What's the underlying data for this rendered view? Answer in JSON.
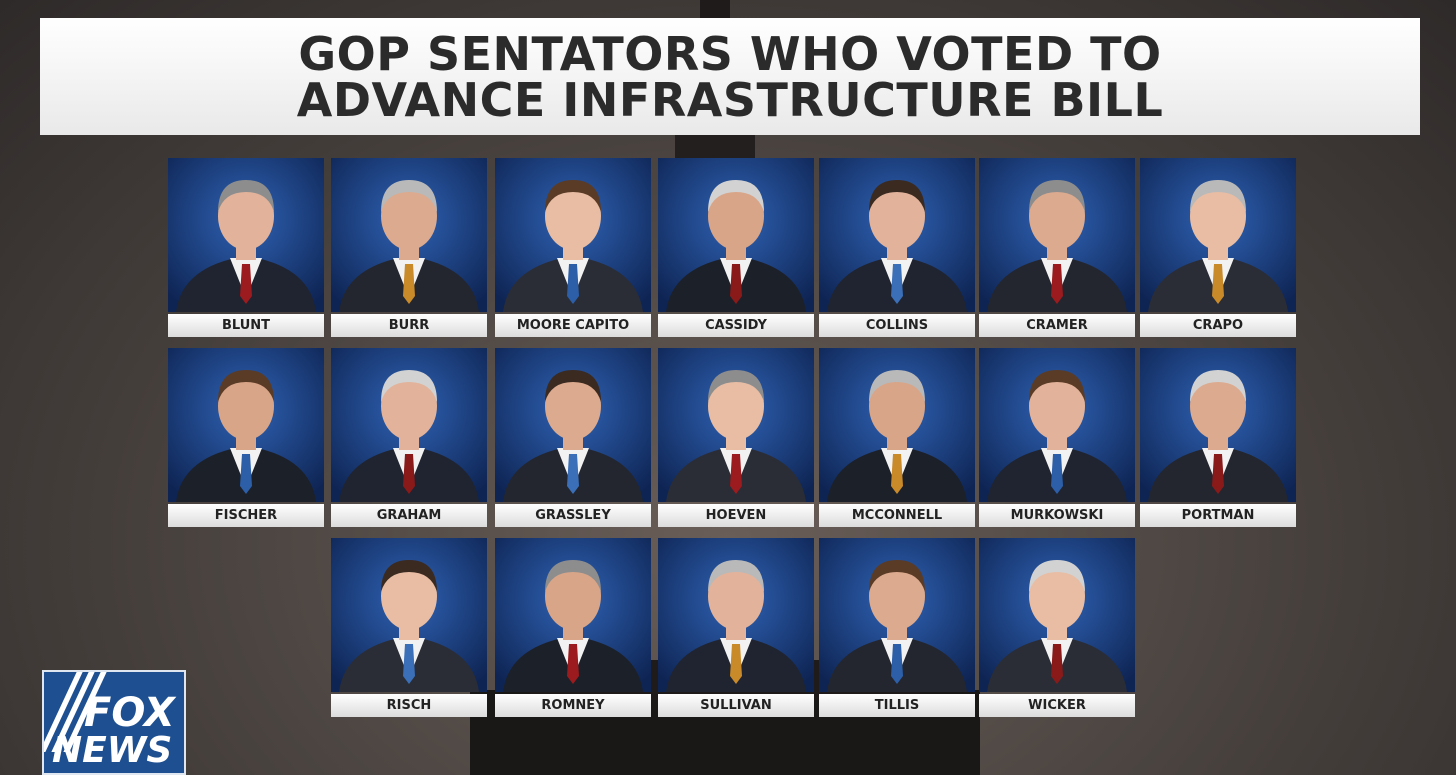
{
  "header": {
    "title_lines": [
      "GOP SENTATORS WHO VOTED TO",
      "ADVANCE INFRASTRUCTURE BILL"
    ]
  },
  "rows": [
    [
      "BLUNT",
      "BURR",
      "MOORE CAPITO",
      "CASSIDY",
      "COLLINS",
      "CRAMER",
      "CRAPO"
    ],
    [
      "FISCHER",
      "GRAHAM",
      "GRASSLEY",
      "HOEVEN",
      "MCCONNELL",
      "MURKOWSKI",
      "PORTMAN"
    ],
    [
      "RISCH",
      "ROMNEY",
      "SULLIVAN",
      "TILLIS",
      "WICKER"
    ]
  ],
  "logo": {
    "top": "FOX",
    "bottom": "NEWS"
  }
}
